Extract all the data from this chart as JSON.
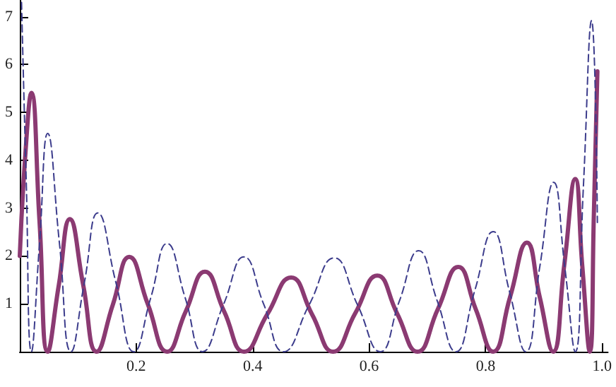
{
  "chart_data": {
    "type": "line",
    "marker": "none",
    "grid": false,
    "xlim": [
      0,
      1.01
    ],
    "xticks": [
      0.2,
      0.4,
      0.6,
      0.8,
      {
        "value": 1,
        "label": "1.0"
      }
    ],
    "ylim": [
      0,
      7.35
    ],
    "yticks": [
      1,
      2,
      3,
      4,
      5,
      6,
      7
    ],
    "series": [
      {
        "color": "#8b3a72",
        "line_style": "solid",
        "x": [
          0,
          0.01,
          0.02,
          0.034,
          0.048,
          0.067,
          0.086,
          0.109,
          0.132,
          0.16,
          0.188,
          0.22,
          0.253,
          0.285,
          0.318,
          0.351,
          0.385,
          0.425,
          0.466,
          0.502,
          0.538,
          0.576,
          0.614,
          0.648,
          0.683,
          0.718,
          0.753,
          0.783,
          0.813,
          0.842,
          0.871,
          0.893,
          0.916,
          0.935,
          0.954,
          0.966,
          0.979,
          0.986,
          0.992
        ],
        "values": [
          2.0,
          4.2,
          5.41,
          2.7,
          0,
          1.39,
          2.77,
          1.39,
          0,
          0.99,
          1.98,
          0.99,
          0,
          0.84,
          1.67,
          0.84,
          0,
          0.78,
          1.55,
          0.78,
          0,
          0.8,
          1.59,
          0.8,
          0,
          0.89,
          1.77,
          0.89,
          0,
          1.14,
          2.28,
          1.14,
          0,
          1.8,
          3.61,
          1.8,
          0,
          2.9,
          5.86
        ]
      },
      {
        "color": "#3c3c8c",
        "line_style": "dashed",
        "x": [
          0.003,
          0.011,
          0.02,
          0.034,
          0.048,
          0.068,
          0.088,
          0.111,
          0.134,
          0.165,
          0.196,
          0.225,
          0.253,
          0.284,
          0.314,
          0.35,
          0.385,
          0.419,
          0.453,
          0.497,
          0.54,
          0.58,
          0.619,
          0.652,
          0.685,
          0.717,
          0.749,
          0.781,
          0.813,
          0.841,
          0.869,
          0.893,
          0.917,
          0.936,
          0.954,
          0.968,
          0.982,
          0.992
        ],
        "values": [
          7.3,
          3.6,
          0,
          2.28,
          4.56,
          2.28,
          0,
          1.45,
          2.9,
          1.45,
          0,
          1.13,
          2.26,
          1.13,
          0,
          0.99,
          1.98,
          0.99,
          0,
          0.98,
          1.96,
          0.98,
          0,
          1.06,
          2.11,
          1.06,
          0,
          1.26,
          2.51,
          1.26,
          0,
          1.77,
          3.54,
          1.77,
          0,
          3.46,
          6.92,
          2.7
        ]
      }
    ]
  }
}
